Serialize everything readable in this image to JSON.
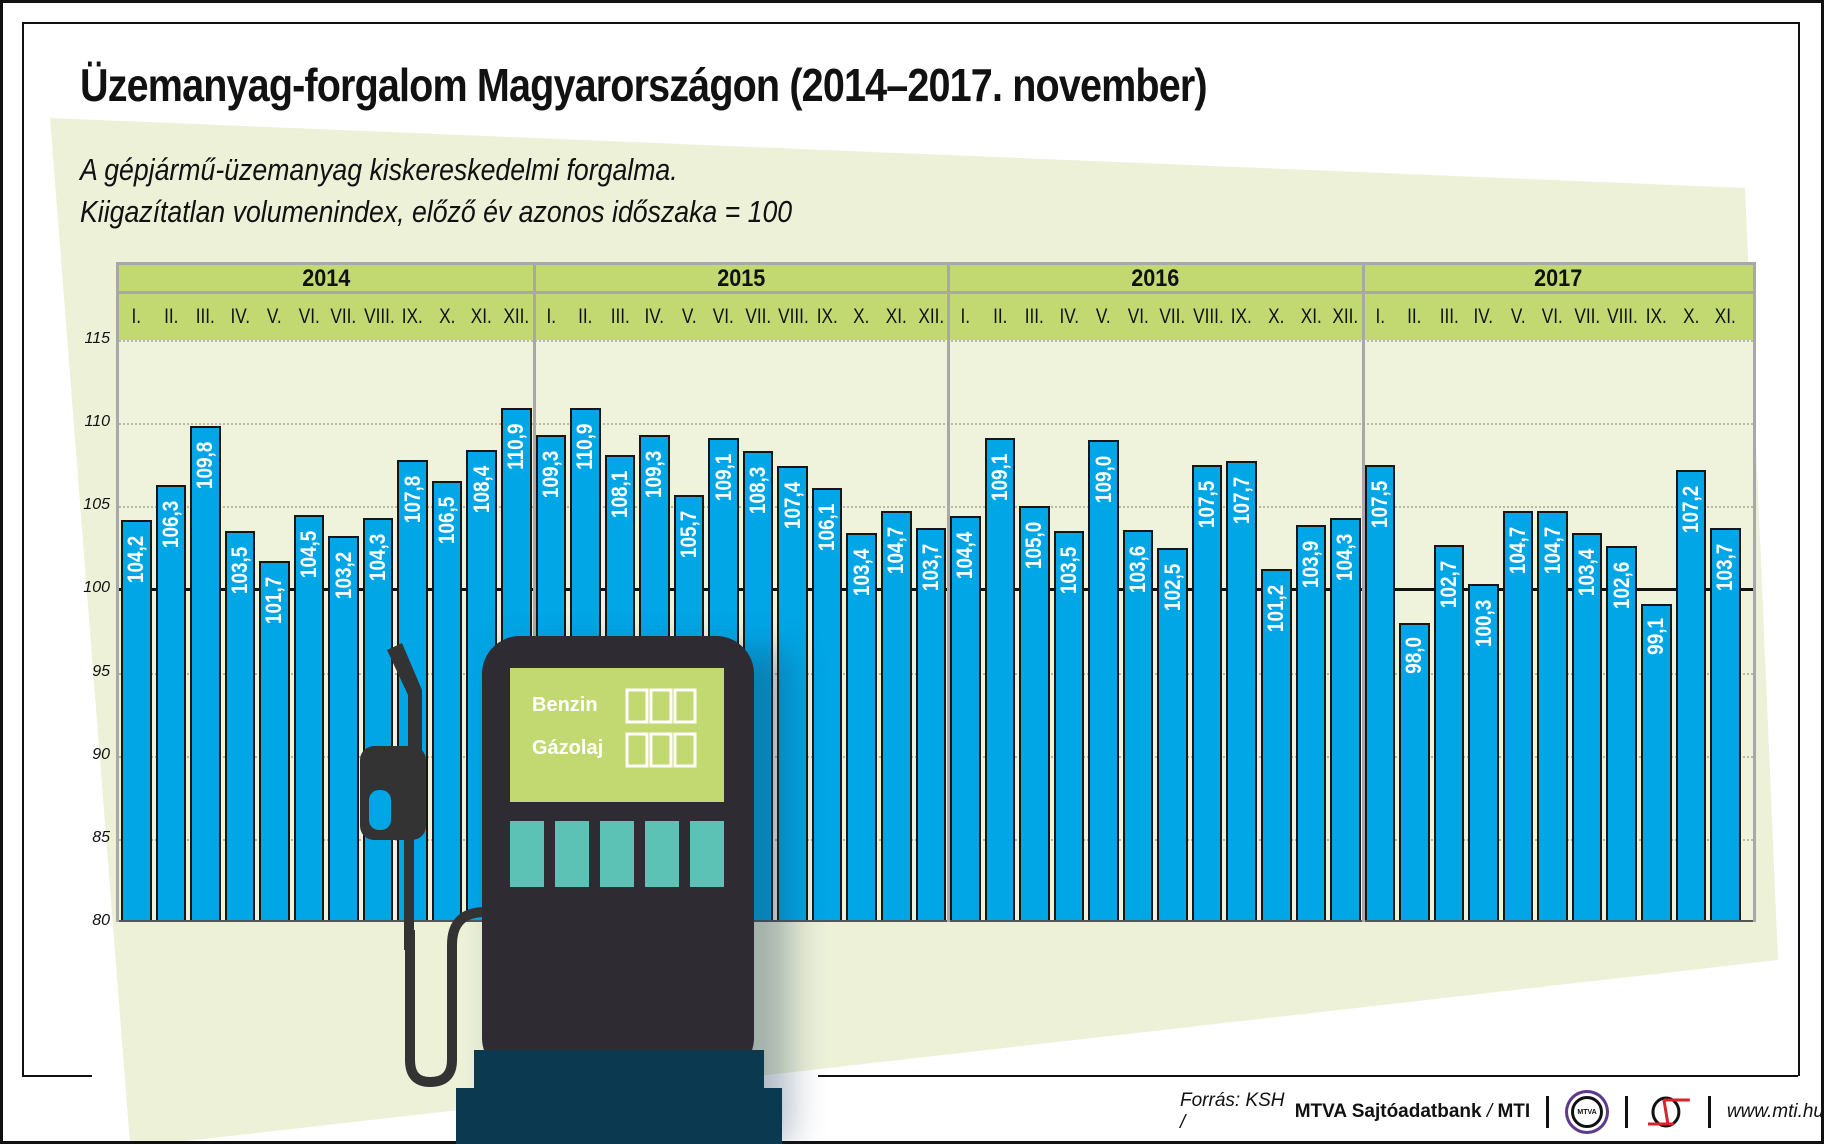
{
  "title": "Üzemanyag-forgalom Magyarországon (2014–2017. november)",
  "subtitle_line1": "A gépjármű-üzemanyag kiskereskedelmi forgalma.",
  "subtitle_line2": "Kiigazítatlan volumenindex, előző év azonos időszaka = 100",
  "pump": {
    "label_petrol": "Benzin",
    "label_diesel": "Gázolaj"
  },
  "footer": {
    "source_prefix": "Forrás: KSH / ",
    "source_bold": "MTVA Sajtóadatbank",
    "source_sep": " / ",
    "source_mti": "MTI",
    "logo_mtva_text": "MTVA",
    "url": "www.mti.hu"
  },
  "colors": {
    "bar": "#00a6e6",
    "header_green": "#c2d972",
    "plot_bg": "#f0f3dc",
    "panel_bg": "#ecf1d8",
    "pump_body": "#2e2b33",
    "pump_screen": "#c2d972",
    "pump_buttons": "#5bc2b5",
    "pump_base": "#0b3a50"
  },
  "chart_data": {
    "type": "bar",
    "title": "Üzemanyag-forgalom Magyarországon (2014–2017. november)",
    "subtitle": "A gépjármű-üzemanyag kiskereskedelmi forgalma. Kiigazítatlan volumenindex, előző év azonos időszaka = 100",
    "xlabel": "",
    "ylabel": "",
    "ylim": [
      80,
      115
    ],
    "yticks": [
      80,
      85,
      90,
      95,
      100,
      105,
      110,
      115
    ],
    "reference_line": 100,
    "grid": true,
    "legend": null,
    "years": [
      {
        "year": "2014",
        "months": [
          "I.",
          "II.",
          "III.",
          "IV.",
          "V.",
          "VI.",
          "VII.",
          "VIII.",
          "IX.",
          "X.",
          "XI.",
          "XII."
        ],
        "values": [
          104.2,
          106.3,
          109.8,
          103.5,
          101.7,
          104.5,
          103.2,
          104.3,
          107.8,
          106.5,
          108.4,
          110.9
        ]
      },
      {
        "year": "2015",
        "months": [
          "I.",
          "II.",
          "III.",
          "IV.",
          "V.",
          "VI.",
          "VII.",
          "VIII.",
          "IX.",
          "X.",
          "XI.",
          "XII."
        ],
        "values": [
          109.3,
          110.9,
          108.1,
          109.3,
          105.7,
          109.1,
          108.3,
          107.4,
          106.1,
          103.4,
          104.7,
          103.7
        ]
      },
      {
        "year": "2016",
        "months": [
          "I.",
          "II.",
          "III.",
          "IV.",
          "V.",
          "VI.",
          "VII.",
          "VIII.",
          "IX.",
          "X.",
          "XI.",
          "XII."
        ],
        "values": [
          104.4,
          109.1,
          105.0,
          103.5,
          109.0,
          103.6,
          102.5,
          107.5,
          107.7,
          101.2,
          103.9,
          104.3
        ]
      },
      {
        "year": "2017",
        "months": [
          "I.",
          "II.",
          "III.",
          "IV.",
          "V.",
          "VI.",
          "VII.",
          "VIII.",
          "IX.",
          "X.",
          "XI."
        ],
        "values": [
          107.5,
          98.0,
          102.7,
          100.3,
          104.7,
          104.7,
          103.4,
          102.6,
          99.1,
          107.2,
          103.7
        ]
      }
    ],
    "value_labels": [
      [
        "104,2",
        "106,3",
        "109,8",
        "103,5",
        "101,7",
        "104,5",
        "103,2",
        "104,3",
        "107,8",
        "106,5",
        "108,4",
        "110,9"
      ],
      [
        "109,3",
        "110,9",
        "108,1",
        "109,3",
        "105,7",
        "109,1",
        "108,3",
        "107,4",
        "106,1",
        "103,4",
        "104,7",
        "103,7"
      ],
      [
        "104,4",
        "109,1",
        "105,0",
        "103,5",
        "109,0",
        "103,6",
        "102,5",
        "107,5",
        "107,7",
        "101,2",
        "103,9",
        "104,3"
      ],
      [
        "107,5",
        "98,0",
        "102,7",
        "100,3",
        "104,7",
        "104,7",
        "103,4",
        "102,6",
        "99,1",
        "107,2",
        "103,7"
      ]
    ]
  }
}
